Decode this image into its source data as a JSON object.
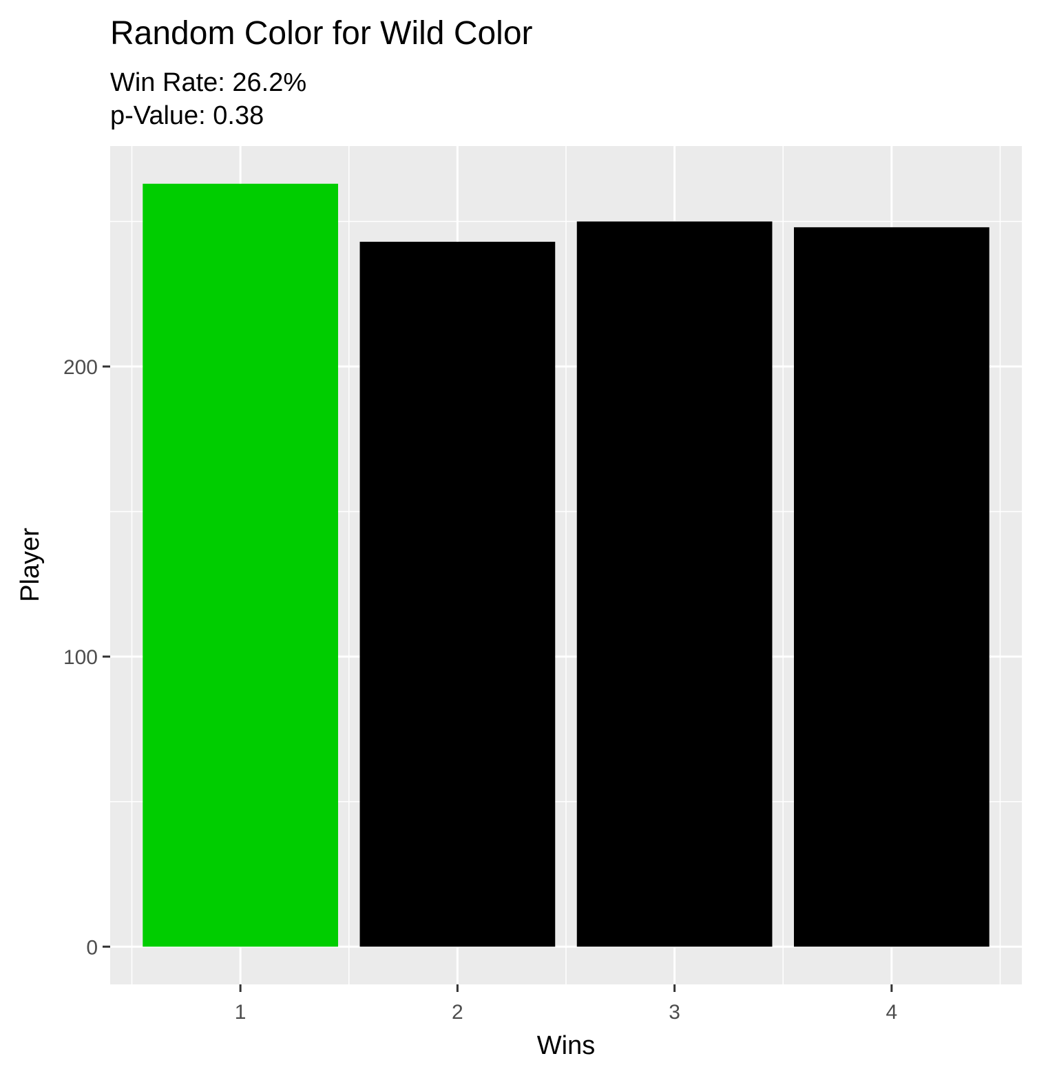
{
  "chart_data": {
    "type": "bar",
    "title": "Random Color for Wild Color",
    "subtitle_lines": [
      "Win Rate: 26.2%",
      "p-Value: 0.38"
    ],
    "xlabel": "Wins",
    "ylabel": "Player",
    "categories": [
      "1",
      "2",
      "3",
      "4"
    ],
    "values": [
      263,
      243,
      250,
      248
    ],
    "bar_colors": [
      "#00CD00",
      "#000000",
      "#000000",
      "#000000"
    ],
    "ylim": [
      -13,
      276
    ],
    "yticks": [
      0,
      100,
      200
    ],
    "yticks_minor": [
      50,
      150,
      250
    ],
    "grid": true,
    "panel_background": "#EBEBEB",
    "legend": "none"
  }
}
